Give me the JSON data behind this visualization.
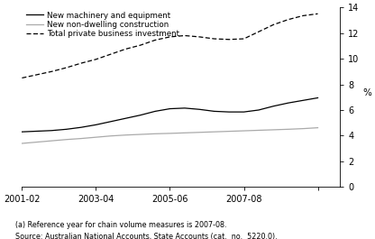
{
  "ylabel": "%",
  "ylim": [
    0,
    14
  ],
  "yticks": [
    0,
    2,
    4,
    6,
    8,
    10,
    12,
    14
  ],
  "x_tick_positions": [
    0,
    2,
    4,
    6,
    8
  ],
  "x_tick_labels": [
    "2001-02",
    "2003-04",
    "2005-06",
    "2007-08",
    ""
  ],
  "xlim": [
    0,
    8.6
  ],
  "note1": "(a) Reference year for chain volume measures is 2007-08.",
  "note2": "Source: Australian National Accounts, State Accounts (cat.  no.  5220.0).",
  "legend": [
    {
      "label": "New machinery and equipment",
      "color": "#000000",
      "linestyle": "-"
    },
    {
      "label": "New non-dwelling construction",
      "color": "#aaaaaa",
      "linestyle": "-"
    },
    {
      "label": "Total private business investment",
      "color": "#000000",
      "linestyle": "--"
    }
  ],
  "machinery": [
    4.3,
    4.35,
    4.4,
    4.5,
    4.65,
    4.85,
    5.1,
    5.35,
    5.6,
    5.9,
    6.1,
    6.15,
    6.05,
    5.9,
    5.85,
    5.85,
    6.0,
    6.3,
    6.55,
    6.75,
    6.95
  ],
  "construction": [
    3.4,
    3.5,
    3.6,
    3.7,
    3.78,
    3.88,
    3.98,
    4.05,
    4.1,
    4.15,
    4.18,
    4.22,
    4.26,
    4.3,
    4.34,
    4.38,
    4.42,
    4.46,
    4.5,
    4.55,
    4.62
  ],
  "total": [
    8.5,
    8.75,
    9.0,
    9.3,
    9.65,
    9.95,
    10.35,
    10.75,
    11.05,
    11.45,
    11.7,
    11.8,
    11.7,
    11.55,
    11.5,
    11.55,
    12.1,
    12.65,
    13.05,
    13.35,
    13.5
  ],
  "background": "#ffffff"
}
